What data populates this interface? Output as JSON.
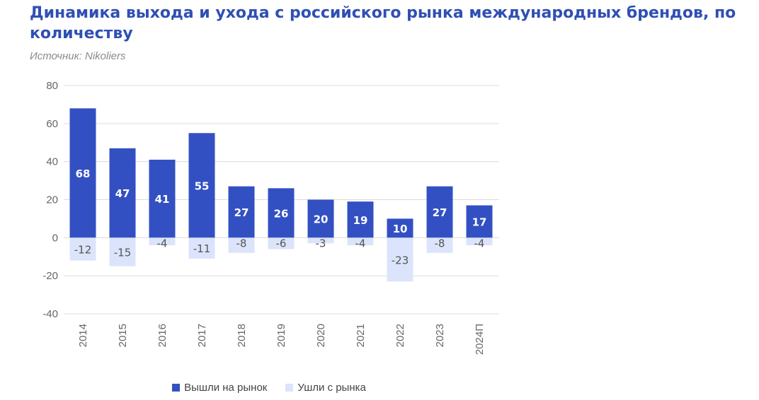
{
  "title": "Динамика выхода и ухода с российского рынка международных брендов, по количеству",
  "source": "Источник: Nikoliers",
  "colors": {
    "entered": "#3350c3",
    "left": "#dbe4fa",
    "grid": "#dcdcdc"
  },
  "chart_data": {
    "type": "bar",
    "stacked": true,
    "title": "Динамика выхода и ухода с российского рынка международных брендов, по количеству",
    "xlabel": "",
    "ylabel": "",
    "ylim": [
      -40,
      80
    ],
    "yticks": [
      80,
      60,
      40,
      20,
      0,
      -20,
      -40
    ],
    "grid": true,
    "legend_position": "bottom",
    "categories": [
      "2014",
      "2015",
      "2016",
      "2017",
      "2018",
      "2019",
      "2020",
      "2021",
      "2022",
      "2023",
      "2024П"
    ],
    "series": [
      {
        "name": "Вышли на рынок",
        "values": [
          68,
          47,
          41,
          55,
          27,
          26,
          20,
          19,
          10,
          27,
          17
        ]
      },
      {
        "name": "Ушли с рынка",
        "values": [
          -12,
          -15,
          -4,
          -11,
          -8,
          -6,
          -3,
          -4,
          -23,
          -8,
          -4
        ]
      }
    ]
  }
}
